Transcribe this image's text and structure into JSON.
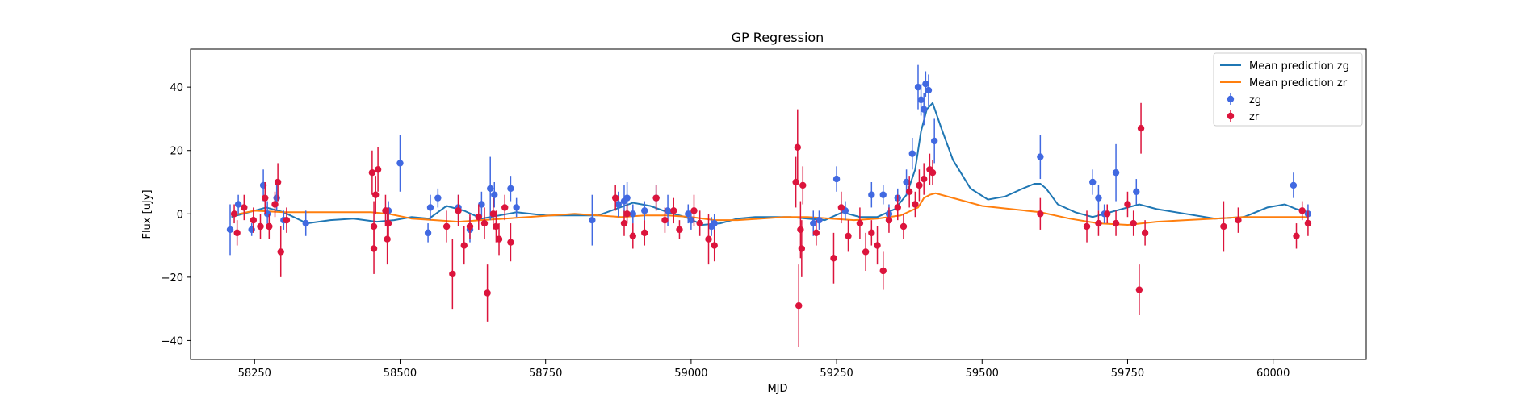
{
  "chart_data": {
    "type": "scatter",
    "title": "GP Regression",
    "xlabel": "MJD",
    "ylabel": "Flux [uJy]",
    "xlim": [
      58140,
      60160
    ],
    "ylim": [
      -46,
      52
    ],
    "x_ticks": [
      58250,
      58500,
      58750,
      59000,
      59250,
      59500,
      59750,
      60000
    ],
    "y_ticks": [
      -40,
      -20,
      0,
      20,
      40
    ],
    "legend_position": "top-right",
    "colors": {
      "zg": "#4169e1",
      "zr": "#dc143c",
      "mean_zg": "#1f77b4",
      "mean_zr": "#ff7f0e"
    },
    "series": [
      {
        "name": "Mean prediction zg",
        "kind": "line",
        "x": [
          58210,
          58240,
          58270,
          58300,
          58340,
          58380,
          58420,
          58460,
          58490,
          58520,
          58550,
          58580,
          58610,
          58640,
          58670,
          58700,
          58750,
          58800,
          58840,
          58870,
          58900,
          58930,
          58960,
          58990,
          59020,
          59050,
          59080,
          59110,
          59140,
          59170,
          59200,
          59230,
          59260,
          59290,
          59320,
          59350,
          59370,
          59385,
          59395,
          59405,
          59415,
          59430,
          59450,
          59480,
          59510,
          59540,
          59570,
          59590,
          59600,
          59610,
          59630,
          59660,
          59690,
          59720,
          59750,
          59770,
          59800,
          59850,
          59900,
          59950,
          59990,
          60020,
          60040,
          60060
        ],
        "y": [
          -1.0,
          0.5,
          2.0,
          0.5,
          -3.0,
          -2.0,
          -1.5,
          -2.5,
          -2.0,
          -1.0,
          -1.5,
          2.5,
          1.0,
          -1.5,
          -0.5,
          0.5,
          -0.5,
          -0.5,
          -0.5,
          1.5,
          3.5,
          2.5,
          0.5,
          -1.0,
          -3.5,
          -3.0,
          -1.5,
          -1.0,
          -1.0,
          -1.0,
          -1.5,
          -2.0,
          0.5,
          -1.0,
          -1.0,
          1.5,
          6.0,
          14.0,
          26.0,
          33.0,
          35.0,
          27.0,
          17.0,
          8.0,
          4.5,
          5.5,
          8.0,
          9.5,
          9.5,
          8.0,
          3.0,
          0.5,
          -1.0,
          0.5,
          2.0,
          3.0,
          1.5,
          0.0,
          -1.5,
          -1.0,
          2.0,
          3.0,
          1.5,
          0.5
        ]
      },
      {
        "name": "Mean prediction zr",
        "kind": "line",
        "x": [
          58210,
          58250,
          58300,
          58350,
          58400,
          58450,
          58480,
          58520,
          58560,
          58600,
          58640,
          58680,
          58720,
          58760,
          58800,
          58840,
          58880,
          58920,
          58960,
          59000,
          59040,
          59080,
          59120,
          59160,
          59200,
          59240,
          59280,
          59320,
          59360,
          59390,
          59400,
          59410,
          59420,
          59450,
          59500,
          59550,
          59600,
          59650,
          59700,
          59750,
          59800,
          59850,
          59900,
          59950,
          60000,
          60050,
          60060
        ],
        "y": [
          -0.5,
          1.0,
          0.5,
          0.5,
          0.5,
          0.5,
          0.0,
          -1.5,
          -2.0,
          -2.5,
          -2.0,
          -1.5,
          -1.0,
          -0.5,
          0.0,
          -0.5,
          -1.0,
          -0.5,
          -0.5,
          -1.0,
          -2.0,
          -2.0,
          -1.5,
          -1.0,
          -1.0,
          -1.5,
          -2.0,
          -1.5,
          -0.5,
          2.0,
          5.0,
          6.0,
          6.5,
          5.0,
          2.5,
          1.5,
          0.5,
          -1.5,
          -3.0,
          -3.5,
          -2.5,
          -2.0,
          -1.5,
          -1.0,
          -1.0,
          -1.0,
          -1.0
        ]
      },
      {
        "name": "zg",
        "kind": "errorbar",
        "points": [
          [
            58208,
            -5,
            8
          ],
          [
            58222,
            3,
            3
          ],
          [
            58245,
            -5,
            2
          ],
          [
            58265,
            9,
            5
          ],
          [
            58272,
            0,
            4
          ],
          [
            58288,
            5,
            4
          ],
          [
            58300,
            -2,
            3
          ],
          [
            58338,
            -3,
            4
          ],
          [
            58480,
            1,
            3
          ],
          [
            58500,
            16,
            9
          ],
          [
            58548,
            -6,
            3
          ],
          [
            58552,
            2,
            4
          ],
          [
            58565,
            5,
            3
          ],
          [
            58600,
            2,
            4
          ],
          [
            58620,
            -5,
            4
          ],
          [
            58640,
            3,
            4
          ],
          [
            58655,
            8,
            10
          ],
          [
            58662,
            6,
            4
          ],
          [
            58690,
            8,
            4
          ],
          [
            58700,
            2,
            3
          ],
          [
            58830,
            -2,
            8
          ],
          [
            58875,
            3,
            4
          ],
          [
            58885,
            4,
            5
          ],
          [
            58890,
            5,
            5
          ],
          [
            58900,
            0,
            3
          ],
          [
            58920,
            1,
            3
          ],
          [
            58940,
            5,
            4
          ],
          [
            58960,
            1,
            5
          ],
          [
            58995,
            0,
            3
          ],
          [
            59000,
            -2,
            3
          ],
          [
            59035,
            -4,
            3
          ],
          [
            59040,
            -3,
            3
          ],
          [
            59210,
            -3,
            4
          ],
          [
            59220,
            -2,
            3
          ],
          [
            59250,
            11,
            4
          ],
          [
            59265,
            1,
            3
          ],
          [
            59310,
            6,
            4
          ],
          [
            59330,
            6,
            3
          ],
          [
            59340,
            0,
            3
          ],
          [
            59355,
            5,
            3
          ],
          [
            59370,
            10,
            4
          ],
          [
            59380,
            19,
            5
          ],
          [
            59390,
            40,
            7
          ],
          [
            59395,
            36,
            5
          ],
          [
            59400,
            33,
            5
          ],
          [
            59403,
            41,
            4
          ],
          [
            59408,
            39,
            5
          ],
          [
            59418,
            23,
            7
          ],
          [
            59600,
            18,
            7
          ],
          [
            59690,
            10,
            4
          ],
          [
            59700,
            5,
            4
          ],
          [
            59710,
            0,
            3
          ],
          [
            59730,
            13,
            9
          ],
          [
            59765,
            7,
            4
          ],
          [
            60035,
            9,
            4
          ],
          [
            60060,
            0,
            3
          ]
        ]
      },
      {
        "name": "zr",
        "kind": "errorbar",
        "points": [
          [
            58215,
            0,
            3
          ],
          [
            58220,
            -6,
            4
          ],
          [
            58232,
            2,
            4
          ],
          [
            58248,
            -2,
            4
          ],
          [
            58260,
            -4,
            4
          ],
          [
            58268,
            5,
            5
          ],
          [
            58275,
            -4,
            4
          ],
          [
            58285,
            3,
            4
          ],
          [
            58290,
            10,
            6
          ],
          [
            58295,
            -12,
            8
          ],
          [
            58305,
            -2,
            4
          ],
          [
            58452,
            13,
            7
          ],
          [
            58455,
            -4,
            8
          ],
          [
            58458,
            6,
            6
          ],
          [
            58462,
            14,
            7
          ],
          [
            58475,
            1,
            5
          ],
          [
            58478,
            -8,
            8
          ],
          [
            58480,
            -3,
            5
          ],
          [
            58455,
            -11,
            8
          ],
          [
            58580,
            -4,
            5
          ],
          [
            58590,
            -19,
            11
          ],
          [
            58600,
            1,
            5
          ],
          [
            58610,
            -10,
            6
          ],
          [
            58620,
            -4,
            4
          ],
          [
            58635,
            -1,
            4
          ],
          [
            58645,
            -3,
            5
          ],
          [
            58650,
            -25,
            9
          ],
          [
            58660,
            0,
            5
          ],
          [
            58665,
            -4,
            5
          ],
          [
            58670,
            -8,
            5
          ],
          [
            58680,
            2,
            4
          ],
          [
            58690,
            -9,
            6
          ],
          [
            58870,
            5,
            4
          ],
          [
            58885,
            -3,
            4
          ],
          [
            58890,
            0,
            3
          ],
          [
            58900,
            -7,
            4
          ],
          [
            58920,
            -6,
            4
          ],
          [
            58940,
            5,
            4
          ],
          [
            58955,
            -2,
            4
          ],
          [
            58970,
            1,
            4
          ],
          [
            58980,
            -5,
            3
          ],
          [
            59005,
            1,
            5
          ],
          [
            59015,
            -3,
            4
          ],
          [
            59030,
            -8,
            8
          ],
          [
            59040,
            -10,
            5
          ],
          [
            59180,
            10,
            8
          ],
          [
            59183,
            21,
            12
          ],
          [
            59185,
            -29,
            13
          ],
          [
            59188,
            -5,
            9
          ],
          [
            59190,
            -11,
            9
          ],
          [
            59192,
            9,
            6
          ],
          [
            59215,
            -6,
            4
          ],
          [
            59245,
            -14,
            8
          ],
          [
            59258,
            2,
            5
          ],
          [
            59270,
            -7,
            5
          ],
          [
            59290,
            -3,
            5
          ],
          [
            59300,
            -12,
            6
          ],
          [
            59310,
            -6,
            4
          ],
          [
            59320,
            -10,
            6
          ],
          [
            59330,
            -18,
            6
          ],
          [
            59340,
            -2,
            4
          ],
          [
            59355,
            2,
            4
          ],
          [
            59365,
            -4,
            4
          ],
          [
            59375,
            7,
            5
          ],
          [
            59385,
            3,
            4
          ],
          [
            59392,
            9,
            5
          ],
          [
            59400,
            11,
            5
          ],
          [
            59410,
            14,
            5
          ],
          [
            59415,
            13,
            4
          ],
          [
            59600,
            0,
            5
          ],
          [
            59680,
            -4,
            5
          ],
          [
            59700,
            -3,
            4
          ],
          [
            59715,
            0,
            3
          ],
          [
            59730,
            -3,
            4
          ],
          [
            59750,
            3,
            4
          ],
          [
            59760,
            -3,
            4
          ],
          [
            59770,
            -24,
            8
          ],
          [
            59773,
            27,
            8
          ],
          [
            59780,
            -6,
            4
          ],
          [
            59915,
            -4,
            8
          ],
          [
            59940,
            -2,
            4
          ],
          [
            60040,
            -7,
            4
          ],
          [
            60050,
            1,
            3
          ],
          [
            60060,
            -3,
            4
          ]
        ]
      }
    ]
  }
}
